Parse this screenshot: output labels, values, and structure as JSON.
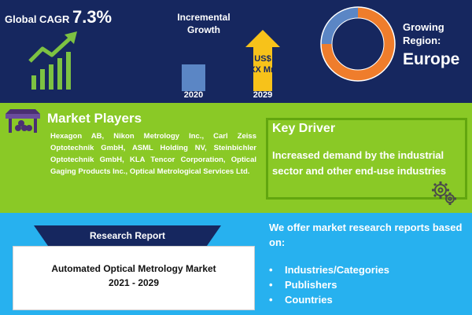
{
  "top": {
    "cagr_label": "Global CAGR",
    "cagr_value": "7.3%",
    "incremental_title": "Incremental Growth",
    "year_start": "2020",
    "year_end": "2029",
    "value_line1": "US$",
    "value_line2": "XX Mn",
    "growing_region_label": "Growing Region:",
    "growing_region_value": "Europe"
  },
  "market_players": {
    "title": "Market Players",
    "text": "Hexagon AB, Nikon Metrology Inc., Carl Zeiss Optotechnik GmbH, ASML Holding NV, Steinbichler Optotechnik GmbH, KLA Tencor Corporation, Optical Gaging Products Inc., Optical Metrological Services Ltd."
  },
  "key_driver": {
    "title": "Key Driver",
    "text": "Increased demand by the industrial sector and other end-use industries"
  },
  "report": {
    "banner": "Research Report",
    "title_line1": "Automated Optical Metrology Market",
    "title_line2": "2021 - 2029"
  },
  "offer": {
    "text": "We offer market research reports based on:",
    "bullet": "•",
    "items": [
      "Industries/Categories",
      "Publishers",
      "Countries"
    ]
  },
  "colors": {
    "navy": "#16275f",
    "green": "#8ac926",
    "sky_blue": "#27b1ef",
    "orange": "#ef7d2c",
    "steel_blue": "#5b86c5",
    "yellow": "#f7c21a"
  },
  "icons": [
    "growth-chart-icon",
    "up-arrow-icon",
    "donut-ring-icon",
    "market-stall-icon",
    "gear-icon"
  ]
}
